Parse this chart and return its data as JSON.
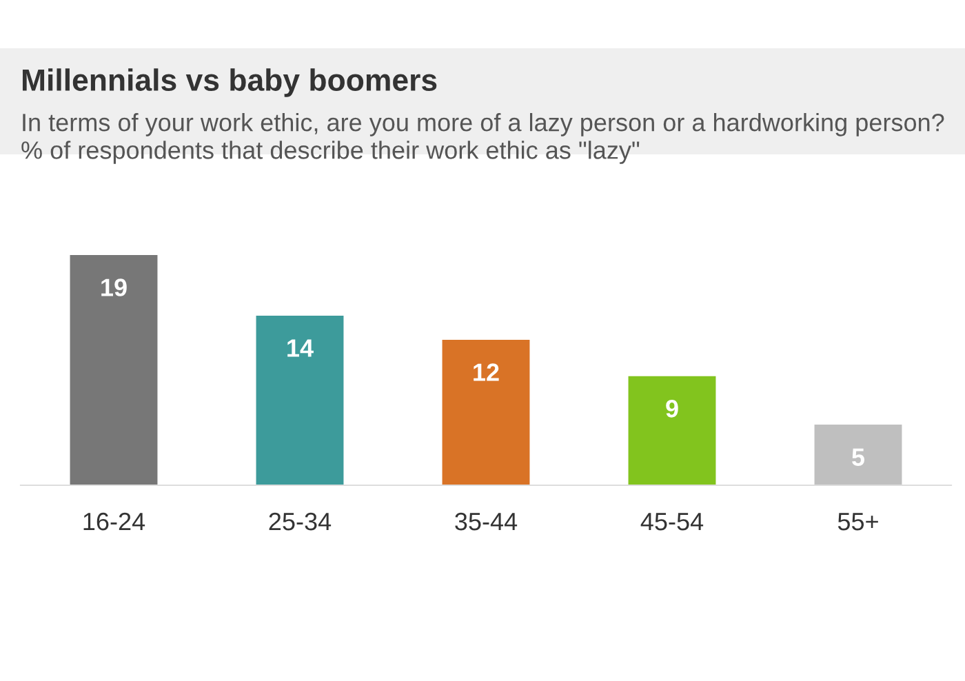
{
  "chart_data": {
    "type": "bar",
    "title": "Millennials vs baby boomers",
    "subtitle": "In terms of your work ethic, are you more of a lazy person or a hardworking person? % of respondents that describe their work ethic as \"lazy\"",
    "categories": [
      "16-24",
      "25-34",
      "35-44",
      "45-54",
      "55+"
    ],
    "values": [
      19,
      14,
      12,
      9,
      5
    ],
    "colors": [
      "#777777",
      "#3d9b9b",
      "#d97326",
      "#82c41e",
      "#bfbfbf"
    ],
    "data_labels": true,
    "grid": false,
    "legend": false
  }
}
